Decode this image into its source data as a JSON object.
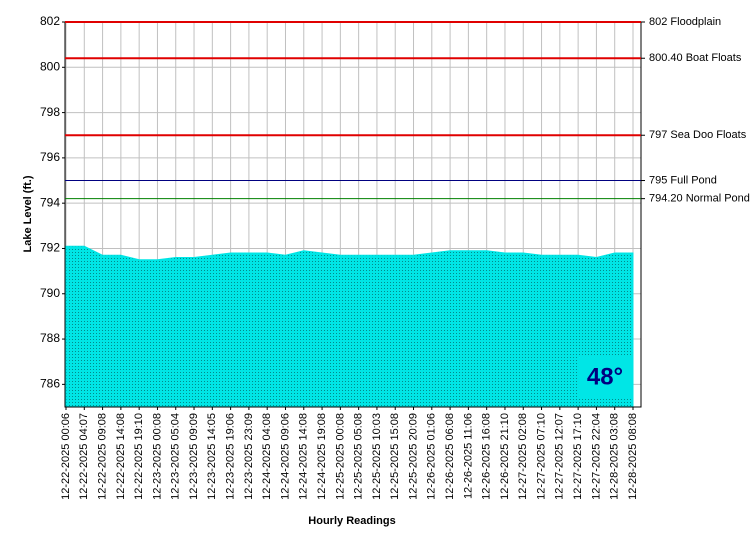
{
  "chart_data": {
    "type": "area",
    "x_label": "Hourly Readings",
    "y_label": "Lake Level (ft.)",
    "categories": [
      "12-22-2025 00:06",
      "12-22-2025 04:07",
      "12-22-2025 09:08",
      "12-22-2025 14:08",
      "12-22-2025 19:10",
      "12-23-2025 00:08",
      "12-23-2025 05:04",
      "12-23-2025 09:09",
      "12-23-2025 14:05",
      "12-23-2025 19:06",
      "12-23-2025 23:09",
      "12-24-2025 04:08",
      "12-24-2025 09:06",
      "12-24-2025 14:08",
      "12-24-2025 19:08",
      "12-25-2025 00:08",
      "12-25-2025 05:08",
      "12-25-2025 10:03",
      "12-25-2025 15:08",
      "12-25-2025 20:09",
      "12-26-2025 01:06",
      "12-26-2025 06:08",
      "12-26-2025 11:06",
      "12-26-2025 16:08",
      "12-26-2025 21:10",
      "12-27-2025 02:08",
      "12-27-2025 07:10",
      "12-27-2025 12:07",
      "12-27-2025 17:10",
      "12-27-2025 22:04",
      "12-28-2025 03:08",
      "12-28-2025 08:08"
    ],
    "series": [
      {
        "color": "#00e6e6",
        "values": [
          792.1,
          792.1,
          791.7,
          791.7,
          791.5,
          791.5,
          791.6,
          791.6,
          791.7,
          791.8,
          791.8,
          791.8,
          791.7,
          791.9,
          791.8,
          791.7,
          791.7,
          791.7,
          791.7,
          791.7,
          791.8,
          791.9,
          791.9,
          791.9,
          791.8,
          791.8,
          791.7,
          791.7,
          791.7,
          791.6,
          791.8,
          791.8
        ]
      }
    ],
    "ylim": [
      785,
      802
    ],
    "yticks": [
      786,
      788,
      790,
      792,
      794,
      796,
      798,
      800,
      802
    ],
    "grid": true,
    "reference_lines": [
      {
        "value": 802,
        "label": "802 Floodplain",
        "color": "#e00000"
      },
      {
        "value": 800.4,
        "label": "800.40 Boat Floats",
        "color": "#e00000"
      },
      {
        "value": 797,
        "label": "797 Sea Doo Floats",
        "color": "#e00000"
      },
      {
        "value": 795,
        "label": "795 Full Pond",
        "color": "#000080"
      },
      {
        "value": 794.2,
        "label": "794.20 Normal Pond",
        "color": "#008000"
      }
    ],
    "temperature_badge": "48°"
  }
}
